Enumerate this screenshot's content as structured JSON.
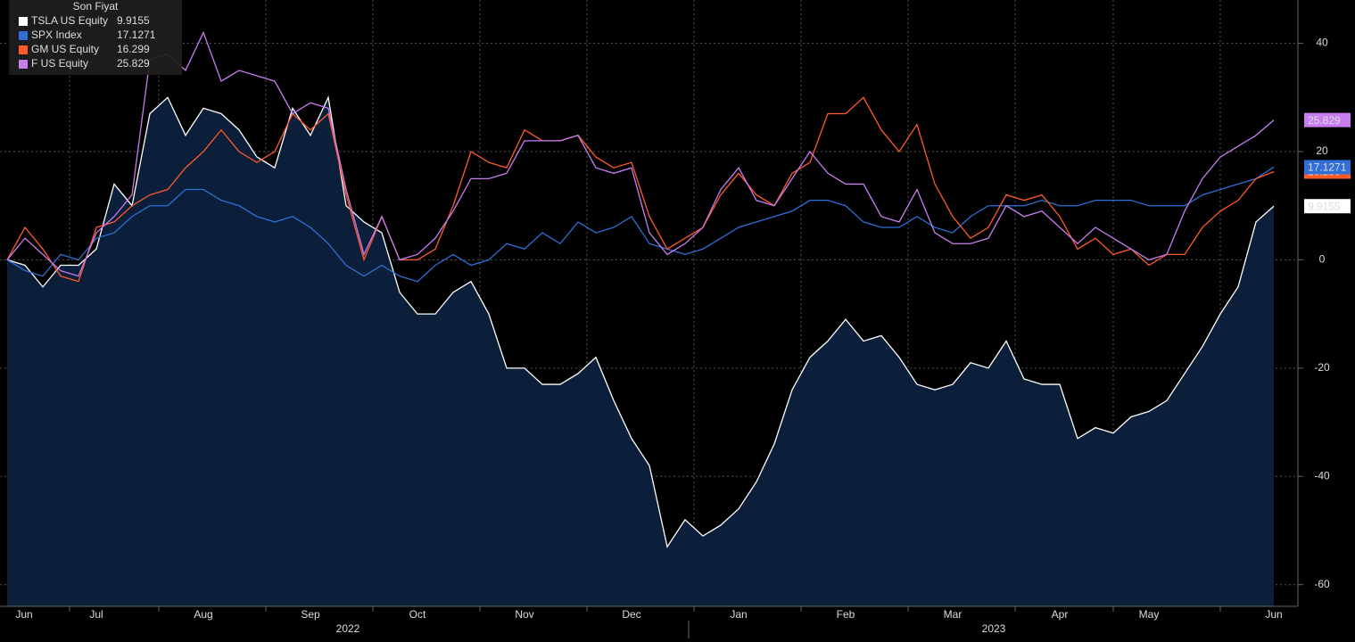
{
  "chart_data": {
    "type": "line",
    "legend_title": "Son Fiyat",
    "year_labels": [
      "2022",
      "2023"
    ],
    "categories": [
      null,
      "Jun",
      null,
      null,
      null,
      "Jul",
      null,
      null,
      null,
      null,
      null,
      "Aug",
      null,
      null,
      null,
      null,
      null,
      "Sep",
      null,
      null,
      null,
      null,
      null,
      "Oct",
      null,
      null,
      null,
      null,
      null,
      "Nov",
      null,
      null,
      null,
      null,
      null,
      "Dec",
      null,
      null,
      null,
      null,
      null,
      "Jan",
      null,
      null,
      null,
      null,
      null,
      "Feb",
      null,
      null,
      null,
      null,
      null,
      "Mar",
      null,
      null,
      null,
      null,
      null,
      "Apr",
      null,
      null,
      null,
      null,
      "May",
      null,
      null,
      null,
      null,
      null,
      null,
      "Jun"
    ],
    "ylim": [
      -64,
      48
    ],
    "yticks": [
      40,
      20,
      0,
      -20,
      -40,
      -60
    ],
    "grid": true,
    "legend": "top-left",
    "series": [
      {
        "name": "TSLA US Equity",
        "color": "#ffffff",
        "fill": "#0b1f3a",
        "values": [
          0,
          -1,
          -5,
          -1,
          -1,
          2,
          14,
          10,
          27,
          30,
          23,
          28,
          27,
          24,
          19,
          17,
          28,
          23,
          30,
          10,
          7,
          5,
          -6,
          -10,
          -10,
          -6,
          -4,
          -10,
          -20,
          -20,
          -23,
          -23,
          -21,
          -18,
          -26,
          -33,
          -38,
          -53,
          -48,
          -51,
          -49,
          -46,
          -41,
          -34,
          -24,
          -18,
          -15,
          -11,
          -15,
          -14,
          -18,
          -23,
          -24,
          -23,
          -19,
          -20,
          -15,
          -22,
          -23,
          -23,
          -33,
          -31,
          -32,
          -29,
          -28,
          -26,
          -21,
          -16,
          -10,
          -5,
          7,
          9.9155
        ]
      },
      {
        "name": "SPX Index",
        "color": "#2f6fd6",
        "values": [
          0,
          -2,
          -3,
          1,
          0,
          4,
          5,
          8,
          10,
          10,
          13,
          13,
          11,
          10,
          8,
          7,
          8,
          6,
          3,
          -1,
          -3,
          -1,
          -3,
          -4,
          -1,
          1,
          -1,
          0,
          3,
          2,
          5,
          3,
          7,
          5,
          6,
          8,
          3,
          2,
          1,
          2,
          4,
          6,
          7,
          8,
          9,
          11,
          11,
          10,
          7,
          6,
          6,
          8,
          6,
          5,
          8,
          10,
          10,
          10,
          11,
          10,
          10,
          11,
          11,
          11,
          10,
          10,
          10,
          12,
          13,
          14,
          15,
          17.1271
        ]
      },
      {
        "name": "GM US Equity",
        "color": "#ff5a2a",
        "values": [
          0,
          6,
          2,
          -3,
          -4,
          6,
          7,
          10,
          12,
          13,
          17,
          20,
          24,
          20,
          18,
          20,
          27,
          24,
          27,
          12,
          0,
          8,
          0,
          0,
          2,
          10,
          20,
          18,
          17,
          24,
          22,
          22,
          23,
          19,
          17,
          18,
          8,
          2,
          4,
          6,
          12,
          16,
          12,
          10,
          16,
          18,
          27,
          27,
          30,
          24,
          20,
          25,
          14,
          8,
          4,
          6,
          12,
          11,
          12,
          8,
          2,
          4,
          1,
          2,
          -1,
          1,
          1,
          6,
          9,
          11,
          15,
          16.299
        ]
      },
      {
        "name": "F US Equity",
        "color": "#c77df0",
        "values": [
          0,
          4,
          1,
          -2,
          -3,
          5,
          8,
          12,
          37,
          38,
          35,
          42,
          33,
          35,
          34,
          33,
          27,
          29,
          28,
          13,
          1,
          8,
          0,
          1,
          4,
          9,
          15,
          15,
          16,
          22,
          22,
          22,
          23,
          17,
          16,
          17,
          5,
          1,
          3,
          6,
          13,
          17,
          11,
          10,
          15,
          20,
          16,
          14,
          14,
          8,
          7,
          13,
          5,
          3,
          3,
          4,
          10,
          8,
          9,
          6,
          3,
          6,
          4,
          2,
          0,
          1,
          9,
          15,
          19,
          21,
          23,
          25.829
        ]
      }
    ]
  }
}
